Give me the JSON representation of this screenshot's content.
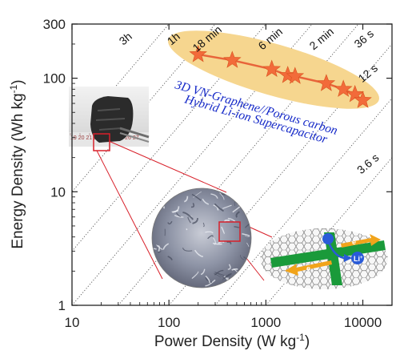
{
  "chart_data": {
    "type": "scatter",
    "x_scale": "log",
    "y_scale": "log",
    "xlim": [
      10,
      20000
    ],
    "ylim": [
      1,
      300
    ],
    "xlabel": "Power Density (W kg",
    "xlabel_sup": "-1",
    "xlabel_end": ")",
    "ylabel": "Energy Density (Wh kg",
    "ylabel_sup": "-1",
    "ylabel_end": ")",
    "x_ticks": [
      {
        "value": 10,
        "label": "10"
      },
      {
        "value": 100,
        "label": "100"
      },
      {
        "value": 1000,
        "label": "1000"
      },
      {
        "value": 10000,
        "label": "10000"
      }
    ],
    "y_ticks": [
      {
        "value": 1,
        "label": "1"
      },
      {
        "value": 10,
        "label": "10"
      },
      {
        "value": 100,
        "label": "100"
      },
      {
        "value": 300,
        "label": "300"
      }
    ],
    "series": [
      {
        "name_lines": [
          "3D VN-Graphene//Porous carbon",
          "Hybrid Li-ion Supercapacitor"
        ],
        "color": "#f26b3a",
        "marker": "star",
        "points": [
          {
            "x": 200,
            "y": 162
          },
          {
            "x": 450,
            "y": 144
          },
          {
            "x": 1150,
            "y": 120
          },
          {
            "x": 1680,
            "y": 106
          },
          {
            "x": 2000,
            "y": 104
          },
          {
            "x": 4200,
            "y": 90
          },
          {
            "x": 6300,
            "y": 80
          },
          {
            "x": 8300,
            "y": 72
          },
          {
            "x": 10000,
            "y": 64
          }
        ]
      }
    ],
    "time_lines": [
      {
        "label": "3h"
      },
      {
        "label": "1h"
      },
      {
        "label": "18 min"
      },
      {
        "label": "6 min"
      },
      {
        "label": "2 min"
      },
      {
        "label": "36 s"
      },
      {
        "label": "12 s"
      },
      {
        "label": "3.6 s"
      }
    ],
    "inset_labels": {
      "ruler": "19  20  21  22  23  24  25  26  27",
      "li_ion": "Li",
      "li_ion_sup": "+",
      "electron_a": "e",
      "electron_b": "e"
    },
    "colors": {
      "ellipse": "#f6d68f",
      "series_line": "#e8643a",
      "star": "#f26b3a",
      "legend_text": "#1428c8",
      "zoom_box": "#d8202a",
      "graphene": "#1a9a3a",
      "electron_arrow": "#f1a41b",
      "ion": "#2a5bd8"
    }
  }
}
